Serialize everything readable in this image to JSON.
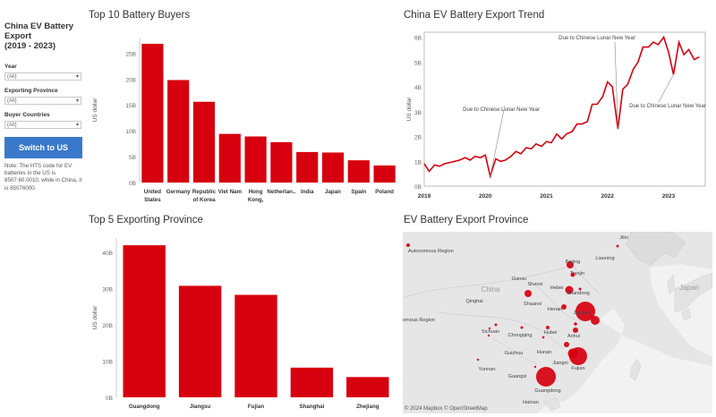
{
  "sidebar": {
    "title_lines": [
      "China EV Battery",
      "Export",
      "(2019 - 2023)"
    ],
    "filters": [
      {
        "label": "Year",
        "value": "(All)"
      },
      {
        "label": "Exporting Province",
        "value": "(All)"
      },
      {
        "label": "Buyer Countries",
        "value": "(All)"
      }
    ],
    "switch_label": "Switch to US",
    "note": "Note: The HTS code for EV batteries in the US is 8507.60.0010, while in China, it is 85076000."
  },
  "colors": {
    "bar": "#d7000f",
    "button": "#3a78c9",
    "line": "#d7000f"
  },
  "panels": {
    "buyers_title": "Top 10 Battery Buyers",
    "trend_title": "China EV Battery Export Trend",
    "province_title": "Top 5 Exporting Province",
    "map_title": "EV Battery Export Province"
  },
  "chart_data": [
    {
      "type": "bar",
      "title": "Top 10 Battery Buyers",
      "ylabel": "US dollar",
      "ylim": [
        0,
        28
      ],
      "yticks": [
        "0B",
        "5B",
        "10B",
        "15B",
        "20B",
        "25B"
      ],
      "categories": [
        "United States",
        "Germany",
        "Republic of Korea",
        "Viet Nam",
        "Hong Kong,",
        "Netherlan..",
        "India",
        "Japan",
        "Spain",
        "Poland"
      ],
      "values": [
        26.8,
        19.8,
        15.6,
        9.4,
        8.9,
        7.8,
        5.9,
        5.8,
        4.3,
        3.3
      ]
    },
    {
      "type": "line",
      "title": "China EV Battery Export Trend",
      "ylabel": "US dollar",
      "ylim": [
        0,
        6.2
      ],
      "yticks": [
        "0B",
        "1B",
        "2B",
        "3B",
        "4B",
        "5B",
        "6B"
      ],
      "xticks": [
        "2019",
        "2020",
        "2021",
        "2022",
        "2023"
      ],
      "xlim": [
        2019,
        2023.6
      ],
      "x": [
        2019.0,
        2019.08,
        2019.17,
        2019.25,
        2019.33,
        2019.42,
        2019.5,
        2019.58,
        2019.67,
        2019.75,
        2019.83,
        2019.92,
        2020.0,
        2020.08,
        2020.17,
        2020.25,
        2020.33,
        2020.42,
        2020.5,
        2020.58,
        2020.67,
        2020.75,
        2020.83,
        2020.92,
        2021.0,
        2021.08,
        2021.17,
        2021.25,
        2021.33,
        2021.42,
        2021.5,
        2021.58,
        2021.67,
        2021.75,
        2021.83,
        2021.92,
        2022.0,
        2022.08,
        2022.17,
        2022.25,
        2022.33,
        2022.42,
        2022.5,
        2022.58,
        2022.67,
        2022.75,
        2022.83,
        2022.92,
        2023.0,
        2023.08,
        2023.17,
        2023.25,
        2023.33,
        2023.42,
        2023.5
      ],
      "y": [
        0.9,
        0.6,
        0.85,
        0.8,
        0.9,
        0.95,
        1.0,
        1.05,
        1.15,
        1.05,
        1.2,
        1.15,
        1.25,
        0.4,
        1.1,
        1.0,
        1.05,
        1.2,
        1.4,
        1.3,
        1.55,
        1.5,
        1.7,
        1.6,
        1.8,
        1.75,
        2.1,
        1.9,
        2.1,
        2.2,
        2.5,
        2.5,
        2.6,
        3.3,
        3.3,
        3.6,
        4.2,
        4.0,
        2.3,
        3.9,
        4.1,
        4.7,
        5.0,
        5.6,
        5.6,
        5.8,
        5.7,
        6.0,
        5.4,
        4.5,
        5.8,
        5.3,
        5.5,
        5.1,
        5.2
      ],
      "annotations": [
        {
          "text": "Due to Chinese Lunar New Year",
          "x": 2020.08
        },
        {
          "text": "Due to Chinese Lunar New Year",
          "x": 2022.17
        },
        {
          "text": "Due to Chinese Lunar New Year",
          "x": 2023.08
        }
      ]
    },
    {
      "type": "bar",
      "title": "Top 5 Exporting Province",
      "ylabel": "US dollar",
      "ylim": [
        0,
        44
      ],
      "yticks": [
        "0B",
        "10B",
        "20B",
        "30B",
        "40B"
      ],
      "categories": [
        "Guangdong",
        "Jiangsu",
        "Fujian",
        "Shanghai",
        "Zhejiang"
      ],
      "values": [
        42.0,
        30.8,
        28.3,
        8.2,
        5.6
      ]
    }
  ],
  "map": {
    "labels": [
      "Autonomous Region",
      "Jilin",
      "Liaoning",
      "Beijing",
      "Tianjin",
      "Gansu",
      "Shanxi",
      "Hebei",
      "Shandong",
      "China",
      "Qinghai",
      "Shaanxi",
      "Henan",
      "Jiangsu",
      "Japan",
      "omous Region",
      "Sichuan",
      "Chongqing",
      "Hubei",
      "Anhui",
      "Hunan",
      "Guizhou",
      "Jiangxi",
      "Yunnan",
      "Fujian",
      "Guangxi",
      "Guangdong",
      "Hainan"
    ],
    "attribution": "© 2024 Mapbox  © OpenStreetMap"
  }
}
